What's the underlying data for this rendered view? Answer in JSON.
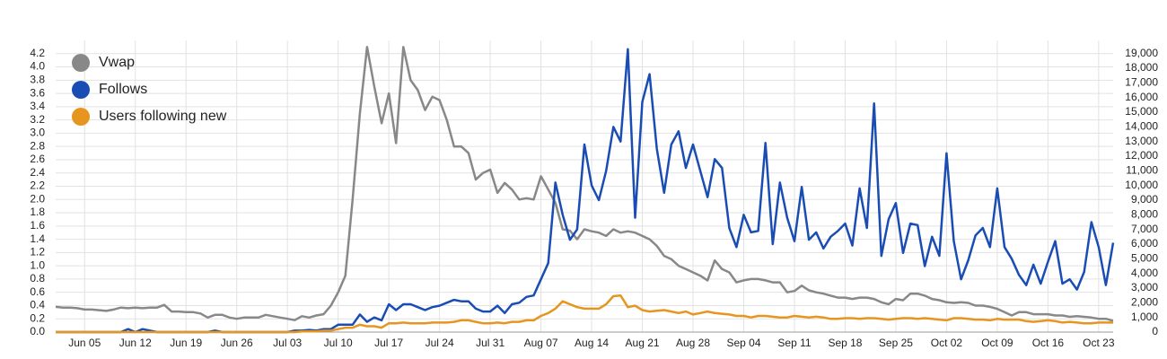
{
  "chart_data": {
    "type": "line",
    "categories": [
      null,
      null,
      null,
      null,
      "Jun 05",
      null,
      null,
      null,
      null,
      null,
      null,
      "Jun 12",
      null,
      null,
      null,
      null,
      null,
      null,
      "Jun 19",
      null,
      null,
      null,
      null,
      null,
      null,
      "Jun 26",
      null,
      null,
      null,
      null,
      null,
      null,
      "Jul 03",
      null,
      null,
      null,
      null,
      null,
      null,
      "Jul 10",
      null,
      null,
      null,
      null,
      null,
      null,
      "Jul 17",
      null,
      null,
      null,
      null,
      null,
      null,
      "Jul 24",
      null,
      null,
      null,
      null,
      null,
      null,
      "Jul 31",
      null,
      null,
      null,
      null,
      null,
      null,
      "Aug 07",
      null,
      null,
      null,
      null,
      null,
      null,
      "Aug 14",
      null,
      null,
      null,
      null,
      null,
      null,
      "Aug 21",
      null,
      null,
      null,
      null,
      null,
      null,
      "Aug 28",
      null,
      null,
      null,
      null,
      null,
      null,
      "Sep 04",
      null,
      null,
      null,
      null,
      null,
      null,
      "Sep 11",
      null,
      null,
      null,
      null,
      null,
      null,
      "Sep 18",
      null,
      null,
      null,
      null,
      null,
      null,
      "Sep 25",
      null,
      null,
      null,
      null,
      null,
      null,
      "Oct 02",
      null,
      null,
      null,
      null,
      null,
      null,
      "Oct 09",
      null,
      null,
      null,
      null,
      null,
      null,
      "Oct 16",
      null,
      null,
      null,
      null,
      null,
      null,
      "Oct 23",
      null,
      null
    ],
    "series": [
      {
        "name": "Vwap",
        "color": "#888888",
        "values": [
          0.38,
          0.37,
          0.37,
          0.36,
          0.34,
          0.34,
          0.33,
          0.32,
          0.34,
          0.37,
          0.36,
          0.37,
          0.36,
          0.37,
          0.37,
          0.41,
          0.31,
          0.31,
          0.3,
          0.3,
          0.28,
          0.22,
          0.26,
          0.26,
          0.22,
          0.2,
          0.22,
          0.22,
          0.22,
          0.26,
          0.24,
          0.22,
          0.2,
          0.18,
          0.24,
          0.22,
          0.25,
          0.27,
          0.4,
          0.6,
          0.85,
          2.0,
          3.3,
          4.3,
          3.7,
          3.15,
          3.6,
          2.85,
          4.3,
          3.8,
          3.65,
          3.35,
          3.55,
          3.5,
          3.2,
          2.8,
          2.8,
          2.7,
          2.3,
          2.4,
          2.45,
          2.1,
          2.25,
          2.15,
          2.0,
          2.02,
          2.0,
          2.35,
          2.15,
          1.95,
          1.55,
          1.53,
          1.4,
          1.55,
          1.52,
          1.5,
          1.45,
          1.55,
          1.5,
          1.52,
          1.5,
          1.45,
          1.4,
          1.3,
          1.15,
          1.1,
          1.0,
          0.95,
          0.9,
          0.85,
          0.78,
          1.08,
          0.95,
          0.9,
          0.75,
          0.78,
          0.8,
          0.8,
          0.78,
          0.75,
          0.75,
          0.6,
          0.62,
          0.7,
          0.63,
          0.6,
          0.58,
          0.55,
          0.52,
          0.52,
          0.5,
          0.52,
          0.52,
          0.5,
          0.45,
          0.42,
          0.5,
          0.48,
          0.58,
          0.58,
          0.55,
          0.5,
          0.48,
          0.45,
          0.44,
          0.45,
          0.44,
          0.4,
          0.4,
          0.38,
          0.35,
          0.3,
          0.25,
          0.3,
          0.3,
          0.27,
          0.27,
          0.27,
          0.25,
          0.25,
          0.23,
          0.24,
          0.23,
          0.22,
          0.2,
          0.2,
          0.17
        ]
      },
      {
        "name": "Follows",
        "color": "#1a4db3",
        "axis": "y2",
        "values": [
          0,
          0,
          0,
          0,
          0,
          0,
          0,
          0,
          0,
          0,
          200,
          0,
          200,
          100,
          0,
          0,
          0,
          0,
          0,
          0,
          0,
          0,
          100,
          0,
          0,
          0,
          0,
          0,
          0,
          0,
          0,
          0,
          0,
          100,
          100,
          150,
          100,
          200,
          200,
          500,
          500,
          500,
          1200,
          700,
          1000,
          800,
          1900,
          1500,
          1900,
          1900,
          1700,
          1500,
          1700,
          1800,
          2000,
          2200,
          2100,
          2100,
          1600,
          1400,
          1400,
          1800,
          1300,
          1900,
          2000,
          2400,
          2500,
          3600,
          4700,
          10200,
          8000,
          6300,
          7000,
          12800,
          10000,
          9000,
          11000,
          14000,
          13000,
          19300,
          7800,
          15700,
          17600,
          12500,
          9500,
          12800,
          13700,
          11200,
          12800,
          11000,
          9200,
          11800,
          11200,
          7100,
          5800,
          8000,
          6800,
          6900,
          12900,
          6000,
          10200,
          7800,
          6200,
          9900,
          6300,
          6800,
          5700,
          6500,
          6900,
          7400,
          5900,
          9800,
          7100,
          15600,
          5200,
          7700,
          8800,
          5400,
          7400,
          7300,
          4500,
          6500,
          5200,
          12200,
          6200,
          3600,
          4900,
          6600,
          7100,
          5800,
          9800,
          5800,
          5000,
          3900,
          3200,
          4600,
          3300,
          4800,
          6200,
          3300,
          3600,
          2900,
          4100,
          7500,
          5800,
          3200,
          6100
        ]
      },
      {
        "name": "Users following new",
        "color": "#e6951f",
        "axis": "y2",
        "values": [
          0,
          0,
          0,
          0,
          0,
          0,
          0,
          0,
          0,
          0,
          0,
          0,
          0,
          0,
          0,
          0,
          0,
          0,
          0,
          0,
          0,
          0,
          0,
          0,
          0,
          0,
          0,
          0,
          0,
          0,
          0,
          0,
          0,
          0,
          50,
          50,
          50,
          100,
          100,
          200,
          300,
          300,
          500,
          400,
          400,
          300,
          600,
          600,
          650,
          600,
          600,
          600,
          650,
          650,
          650,
          700,
          800,
          800,
          700,
          600,
          600,
          650,
          600,
          700,
          700,
          800,
          800,
          1100,
          1300,
          1600,
          2100,
          1900,
          1700,
          1600,
          1600,
          1600,
          1900,
          2450,
          2500,
          1700,
          1800,
          1500,
          1400,
          1450,
          1500,
          1400,
          1300,
          1400,
          1200,
          1300,
          1400,
          1300,
          1250,
          1200,
          1100,
          1100,
          1000,
          1100,
          1100,
          1050,
          1000,
          1000,
          1100,
          1050,
          1000,
          1050,
          1000,
          900,
          900,
          950,
          950,
          900,
          950,
          950,
          900,
          850,
          900,
          950,
          950,
          900,
          950,
          900,
          850,
          800,
          950,
          950,
          900,
          850,
          850,
          800,
          900,
          850,
          850,
          850,
          750,
          700,
          750,
          800,
          750,
          650,
          700,
          650,
          600,
          600,
          650,
          650,
          650
        ]
      }
    ],
    "ylim": [
      0,
      4.4
    ],
    "yticks": [
      {
        "value": 0,
        "label": "0.0"
      },
      0.2,
      0.4,
      0.6,
      0.8,
      {
        "value": 1,
        "label": "1.0"
      },
      1.2,
      1.4,
      1.6,
      1.8,
      {
        "value": 2,
        "label": "2.0"
      },
      2.2,
      2.4,
      2.6,
      2.8,
      {
        "value": 3,
        "label": "3.0"
      },
      3.2,
      3.4,
      3.6,
      3.8,
      {
        "value": 4,
        "label": "4.0"
      },
      4.2
    ],
    "y2lim": [
      0,
      19900
    ],
    "y2ticks": [
      0,
      {
        "value": 1000,
        "label": "1,000"
      },
      {
        "value": 2000,
        "label": "2,000"
      },
      {
        "value": 3000,
        "label": "3,000"
      },
      {
        "value": 4000,
        "label": "4,000"
      },
      {
        "value": 5000,
        "label": "5,000"
      },
      {
        "value": 6000,
        "label": "6,000"
      },
      {
        "value": 7000,
        "label": "7,000"
      },
      {
        "value": 8000,
        "label": "8,000"
      },
      {
        "value": 9000,
        "label": "9,000"
      },
      {
        "value": 10000,
        "label": "10,000"
      },
      {
        "value": 11000,
        "label": "11,000"
      },
      {
        "value": 12000,
        "label": "12,000"
      },
      {
        "value": 13000,
        "label": "13,000"
      },
      {
        "value": 14000,
        "label": "14,000"
      },
      {
        "value": 15000,
        "label": "15,000"
      },
      {
        "value": 16000,
        "label": "16,000"
      },
      {
        "value": 17000,
        "label": "17,000"
      },
      {
        "value": 18000,
        "label": "18,000"
      },
      {
        "value": 19000,
        "label": "19,000"
      }
    ],
    "grid": true,
    "legend": "top-left"
  }
}
